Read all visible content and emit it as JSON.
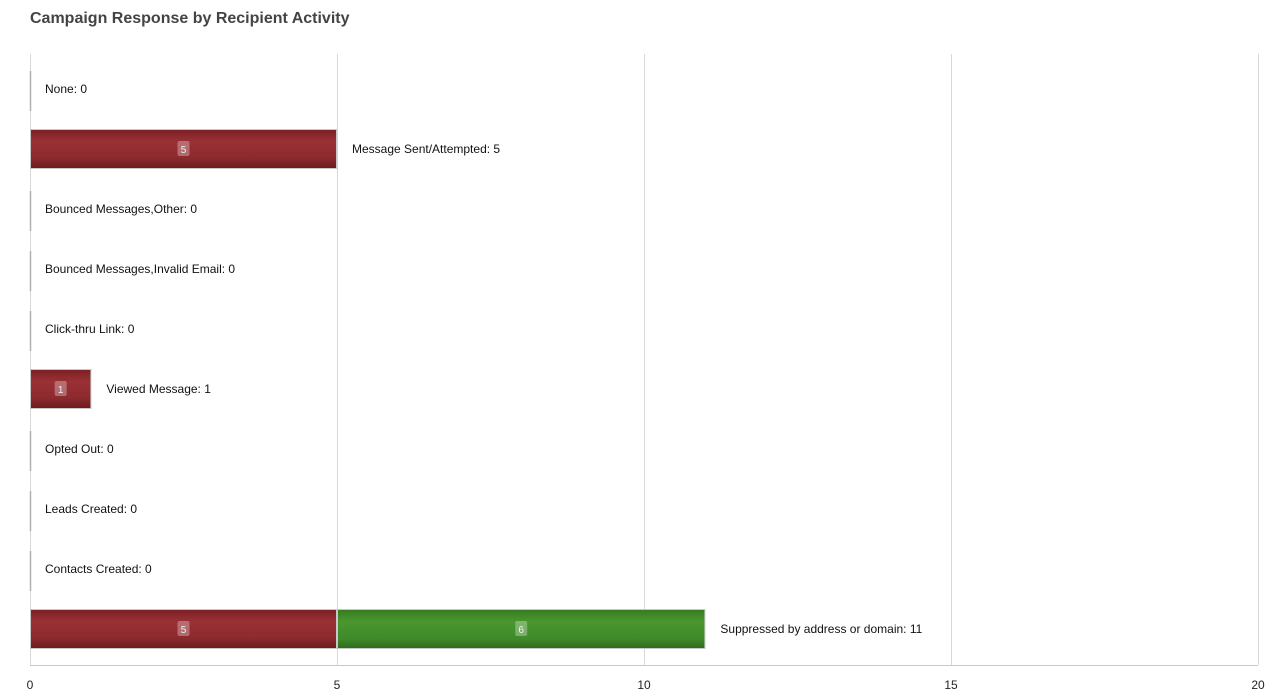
{
  "chart_data": {
    "type": "bar",
    "orientation": "horizontal",
    "stacked": true,
    "title": "Campaign Response by Recipient Activity",
    "categories": [
      "None",
      "Message Sent/Attempted",
      "Bounced Messages,Other",
      "Bounced Messages,Invalid Email",
      "Click-thru Link",
      "Viewed Message",
      "Opted Out",
      "Leads Created",
      "Contacts Created",
      "Suppressed by address or domain"
    ],
    "series": [
      {
        "color": "#8b2a2e",
        "values": [
          0,
          5,
          0,
          0,
          0,
          1,
          0,
          0,
          0,
          5
        ]
      },
      {
        "color": "#3f8a2a",
        "values": [
          0,
          0,
          0,
          0,
          0,
          0,
          0,
          0,
          0,
          6
        ]
      }
    ],
    "category_labels": [
      "None: 0",
      "Message Sent/Attempted: 5",
      "Bounced Messages,Other: 0",
      "Bounced Messages,Invalid Email: 0",
      "Click-thru Link: 0",
      "Viewed Message: 1",
      "Opted Out: 0",
      "Leads Created: 0",
      "Contacts Created: 0",
      "Suppressed by address or domain: 11"
    ],
    "xlim": [
      0,
      20
    ],
    "xticks": [
      0,
      5,
      10,
      15,
      20
    ],
    "grid": true,
    "legend": "none"
  }
}
